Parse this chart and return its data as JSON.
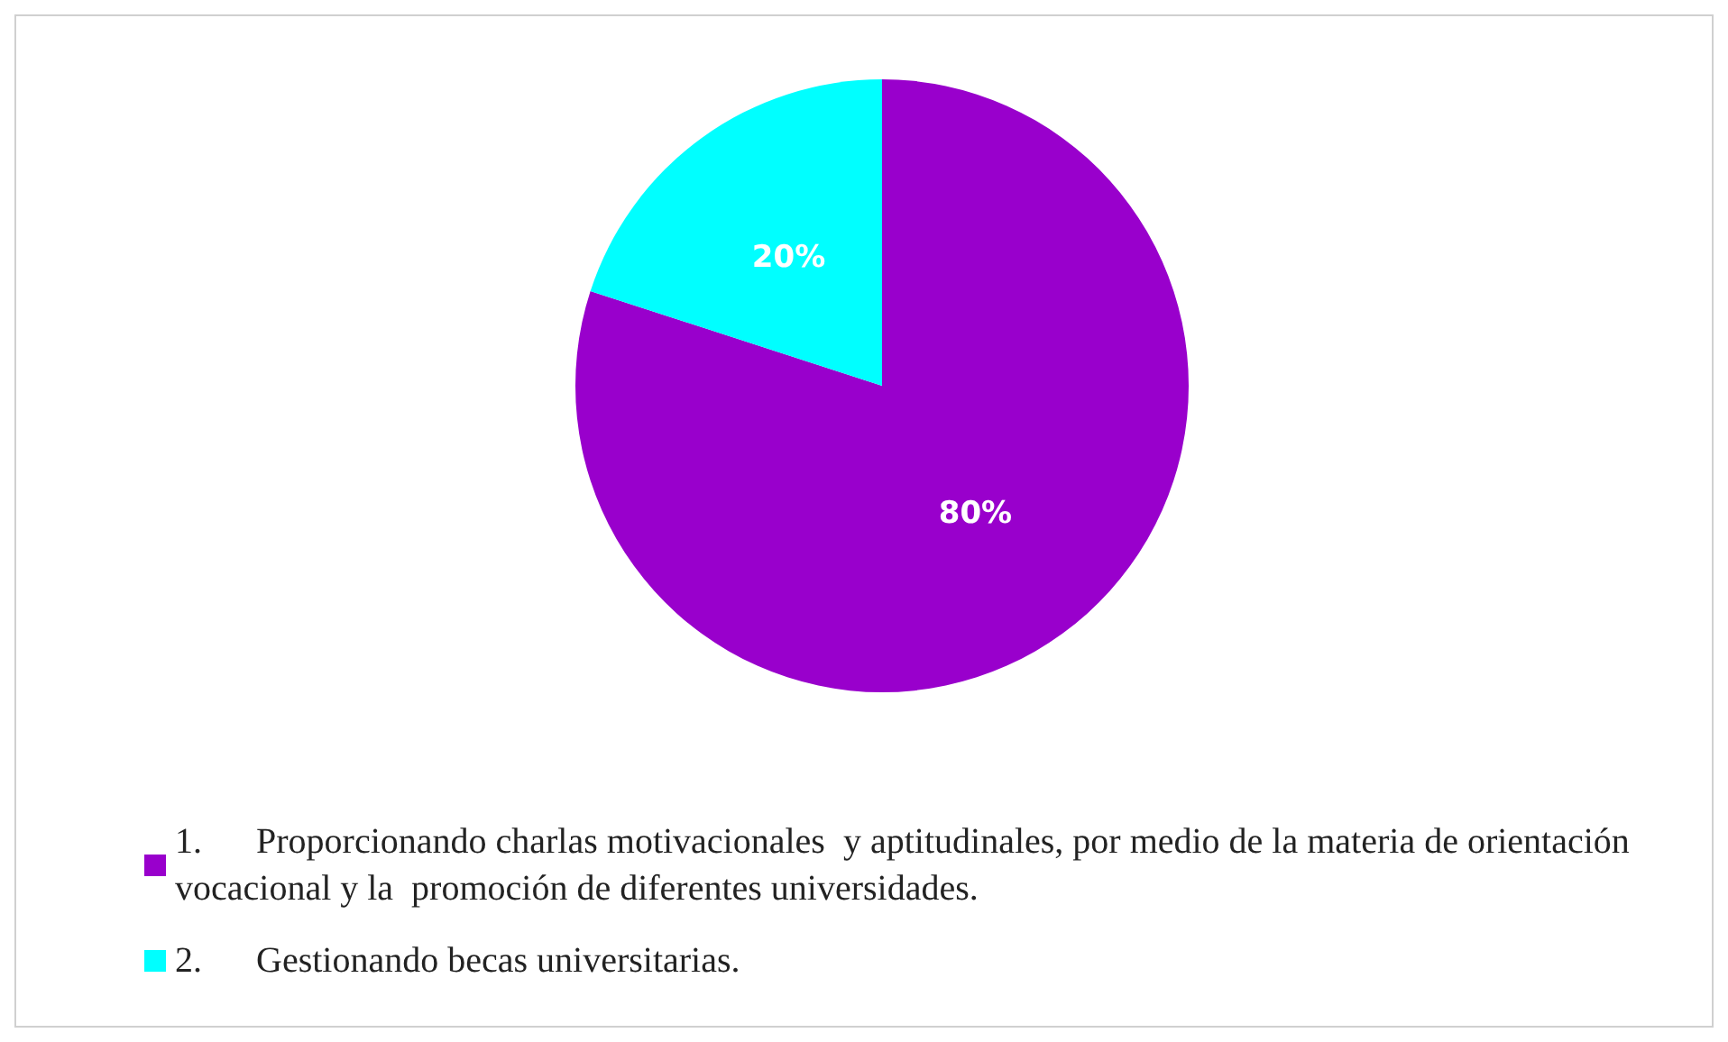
{
  "chart_data": {
    "type": "pie",
    "categories": [
      "1.      Proporcionando charlas motivacionales  y aptitudinales, por medio de la materia de orientación vocacional y la  promoción de diferentes universidades.",
      "2.      Gestionando becas universitarias."
    ],
    "values": [
      80,
      20
    ],
    "colors": [
      "#9900cc",
      "#00ffff"
    ],
    "value_labels": [
      "80%",
      "20%"
    ],
    "legend": "bottom"
  }
}
